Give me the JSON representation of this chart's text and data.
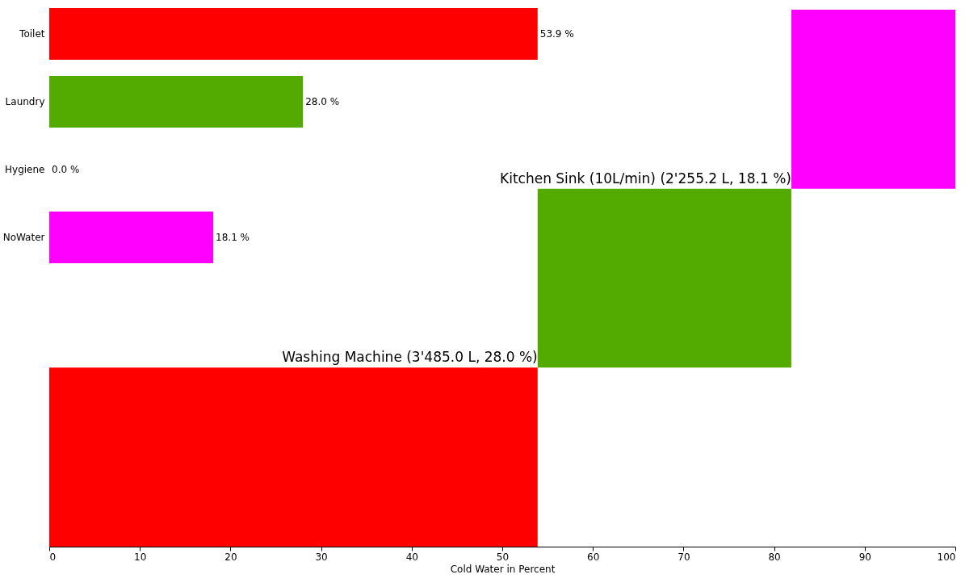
{
  "chart_data": [
    {
      "type": "bar",
      "orientation": "horizontal",
      "categories": [
        "Toilet",
        "Laundry",
        "Hygiene",
        "NoWater"
      ],
      "values": [
        53.9,
        28.0,
        0.0,
        18.1
      ],
      "colors": [
        "#ff0000",
        "#53aa00",
        "#ff00ff",
        "#ff00ff"
      ],
      "value_labels": [
        "53.9 %",
        "28.0 %",
        "0.0 %",
        "18.1 %"
      ],
      "xlim": [
        0,
        100
      ],
      "tick_labels": "y"
    },
    {
      "type": "bar",
      "orientation": "horizontal",
      "categories": [
        null,
        null,
        null
      ],
      "base": [
        81.9,
        53.9,
        0
      ],
      "values": [
        18.1,
        28.0,
        53.9
      ],
      "colors": [
        "#ff00ff",
        "#53aa00",
        "#ff0000"
      ],
      "xlim": [
        0,
        100
      ],
      "xticks": [
        0,
        10,
        20,
        30,
        40,
        50,
        60,
        70,
        80,
        90,
        100
      ],
      "xlabel": "Cold Water in Percent",
      "tick_labels": "x",
      "annotations": [
        {
          "text": "Kitchen Sink (10L/min) (2'255.2 L, 18.1 %)",
          "x": 81.9
        },
        {
          "text": "Washing Machine (3'485.0 L, 28.0 %)",
          "x": 53.9
        }
      ]
    }
  ]
}
